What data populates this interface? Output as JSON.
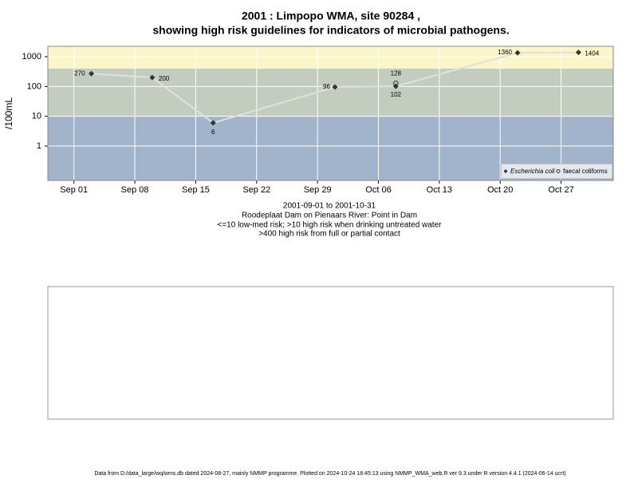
{
  "chart_data": {
    "type": "line",
    "title": "2001 : Limpopo WMA, site 90284 ,",
    "subtitle": "showing high risk guidelines for indicators of microbial pathogens.",
    "y_label": "/100mL",
    "notes": [
      "2001-09-01 to 2001-10-31",
      "Roodeplaat Dam on Pienaars River: Point in Dam",
      "<=10 low-med risk; >10 high risk when drinking untreated water",
      ">400 high risk from full or partial contact"
    ],
    "footer": "Data from D:/data_large/wq/wms.db dated 2024-08-27, mainly NMMP programme. Plotted on 2024-10-24 18:45:13 using NMMP_WMA_web.R ver 9.3 under R version 4.4.1 (2024-06-14 ucrt)",
    "x": [
      "2001-09-03",
      "2001-09-10",
      "2001-09-17",
      "2001-10-01",
      "2001-10-08",
      "2001-10-22",
      "2001-10-29"
    ],
    "series": [
      {
        "name": "Escherichia coli",
        "color": "#333333",
        "marker": "diamond",
        "line_color": "#e0e0e0",
        "values": [
          270,
          200,
          6,
          96,
          102,
          1360,
          1404
        ]
      },
      {
        "name": "faecal coliforms",
        "color": "#333333",
        "marker": "circle",
        "values": [
          null,
          null,
          null,
          null,
          128,
          null,
          null
        ]
      }
    ],
    "log_scale": true,
    "ylim": [
      0.07,
      2240
    ],
    "yticks": [
      1,
      10,
      100,
      1000
    ],
    "xlim": [
      "2001-08-29",
      "2001-11-02"
    ],
    "xticks": [
      {
        "value": "2001-09-01",
        "label": "Sep 01"
      },
      {
        "value": "2001-09-08",
        "label": "Sep 08"
      },
      {
        "value": "2001-09-15",
        "label": "Sep 15"
      },
      {
        "value": "2001-09-22",
        "label": "Sep 22"
      },
      {
        "value": "2001-09-29",
        "label": "Sep 29"
      },
      {
        "value": "2001-10-06",
        "label": "Oct 06"
      },
      {
        "value": "2001-10-13",
        "label": "Oct 13"
      },
      {
        "value": "2001-10-20",
        "label": "Oct 20"
      },
      {
        "value": "2001-10-27",
        "label": "Oct 27"
      }
    ],
    "bands": [
      {
        "from": 0.07,
        "to": 10,
        "color": "#a2b4cc"
      },
      {
        "from": 10,
        "to": 400,
        "color": "#c4ccbf"
      },
      {
        "from": 400,
        "to": 2240,
        "color": "#fbf6c8"
      }
    ],
    "grid": true,
    "legend_position": "bottom-right"
  }
}
